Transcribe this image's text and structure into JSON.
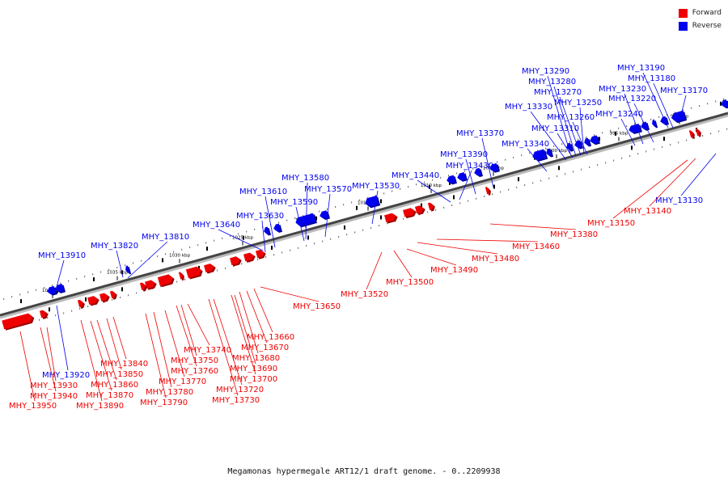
{
  "legend": {
    "forward_label": "Forward",
    "reverse_label": "Reverse",
    "forward_color": "#ee0000",
    "reverse_color": "#0000ee"
  },
  "caption": "Megamonas hypermegale ART12/1 draft genome. - 0..2209938",
  "scale_ticks": [
    "990 kbp",
    "995 kbp",
    "1000 kbp",
    "1005 kbp",
    "1010 kbp",
    "1015 kbp",
    "1020 kbp",
    "1025 kbp",
    "1030 kbp",
    "1035 kbp",
    "1040 kbp"
  ],
  "reverse_genes": [
    "MHY_13130",
    "MHY_13170",
    "MHY_13180",
    "MHY_13190",
    "MHY_13220",
    "MHY_13230",
    "MHY_13240",
    "MHY_13250",
    "MHY_13260",
    "MHY_13270",
    "MHY_13280",
    "MHY_13290",
    "MHY_13310",
    "MHY_13330",
    "MHY_13340",
    "MHY_13370",
    "MHY_13390",
    "MHY_13430",
    "MHY_13440",
    "MHY_13530",
    "MHY_13570",
    "MHY_13580",
    "MHY_13590",
    "MHY_13610",
    "MHY_13630",
    "MHY_13640",
    "MHY_13810",
    "MHY_13820",
    "MHY_13910",
    "MHY_13920"
  ],
  "forward_genes": [
    "MHY_13140",
    "MHY_13150",
    "MHY_13380",
    "MHY_13460",
    "MHY_13480",
    "MHY_13490",
    "MHY_13500",
    "MHY_13520",
    "MHY_13650",
    "MHY_13660",
    "MHY_13670",
    "MHY_13680",
    "MHY_13690",
    "MHY_13700",
    "MHY_13720",
    "MHY_13730",
    "MHY_13740",
    "MHY_13750",
    "MHY_13760",
    "MHY_13770",
    "MHY_13780",
    "MHY_13790",
    "MHY_13840",
    "MHY_13850",
    "MHY_13860",
    "MHY_13870",
    "MHY_13890",
    "MHY_13930",
    "MHY_13940",
    "MHY_13950"
  ]
}
